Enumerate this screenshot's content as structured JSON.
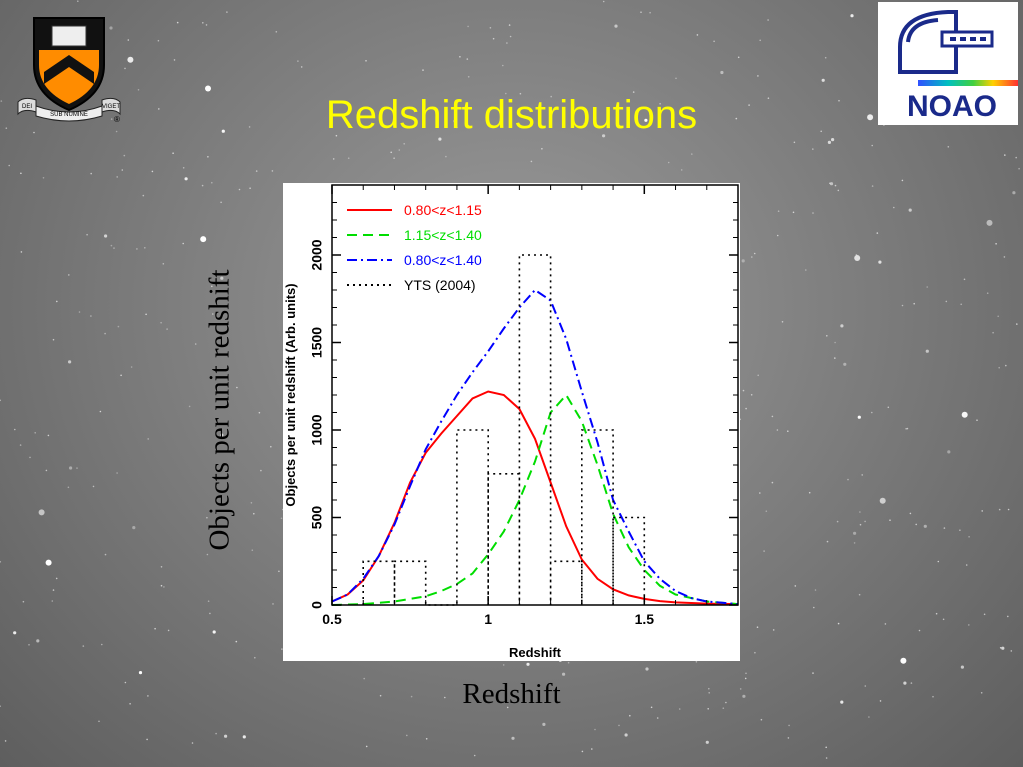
{
  "slide": {
    "title": "Redshift distributions",
    "outer_ylabel": "Objects per unit redshift",
    "outer_xlabel": "Redshift",
    "title_color": "#ffff00"
  },
  "logos": {
    "left": {
      "name": "princeton-shield",
      "motto_left": "DEI",
      "motto_mid": "SUB NUMINE",
      "motto_right": "VIGET",
      "mark": "®"
    },
    "right": {
      "name": "noao-logo",
      "text": "NOAO"
    }
  },
  "chart_data": {
    "type": "line",
    "xlabel": "Redshift",
    "ylabel": "Objects per unit redshift (Arb. units)",
    "xlim": [
      0.5,
      1.8
    ],
    "ylim": [
      0,
      2400
    ],
    "xticks": [
      0.5,
      1,
      1.5
    ],
    "xtick_labels": [
      "0.5",
      "1",
      "1.5"
    ],
    "yticks": [
      0,
      500,
      1000,
      1500,
      2000
    ],
    "ytick_labels": [
      "0",
      "500",
      "1000",
      "1500",
      "2000"
    ],
    "legend_position": "top-left",
    "series": [
      {
        "name": "0.80<z<1.15",
        "color": "#ff0000",
        "style": "solid",
        "x": [
          0.5,
          0.55,
          0.6,
          0.65,
          0.7,
          0.75,
          0.8,
          0.85,
          0.9,
          0.95,
          1.0,
          1.05,
          1.1,
          1.15,
          1.2,
          1.25,
          1.3,
          1.35,
          1.4,
          1.45,
          1.5,
          1.55,
          1.6,
          1.7,
          1.8
        ],
        "y": [
          20,
          60,
          140,
          280,
          470,
          700,
          870,
          980,
          1080,
          1180,
          1220,
          1200,
          1120,
          950,
          700,
          450,
          260,
          150,
          90,
          55,
          35,
          22,
          15,
          8,
          5
        ]
      },
      {
        "name": "1.15<z<1.40",
        "color": "#00dd00",
        "style": "dashed",
        "x": [
          0.5,
          0.6,
          0.7,
          0.8,
          0.85,
          0.9,
          0.95,
          1.0,
          1.05,
          1.1,
          1.15,
          1.2,
          1.25,
          1.3,
          1.35,
          1.4,
          1.45,
          1.5,
          1.55,
          1.6,
          1.7,
          1.8
        ],
        "y": [
          0,
          5,
          20,
          50,
          80,
          120,
          180,
          290,
          420,
          600,
          820,
          1100,
          1200,
          1050,
          800,
          520,
          330,
          200,
          110,
          60,
          20,
          5
        ]
      },
      {
        "name": "0.80<z<1.40",
        "color": "#0000ff",
        "style": "dash-dot",
        "x": [
          0.5,
          0.55,
          0.6,
          0.65,
          0.7,
          0.75,
          0.8,
          0.85,
          0.9,
          0.95,
          1.0,
          1.05,
          1.1,
          1.15,
          1.2,
          1.25,
          1.3,
          1.35,
          1.4,
          1.45,
          1.5,
          1.55,
          1.6,
          1.65,
          1.7,
          1.8
        ],
        "y": [
          20,
          60,
          150,
          280,
          460,
          680,
          890,
          1050,
          1200,
          1330,
          1450,
          1580,
          1700,
          1800,
          1740,
          1520,
          1220,
          930,
          600,
          420,
          250,
          150,
          80,
          40,
          20,
          5
        ]
      },
      {
        "name": "YTS (2004)",
        "color": "#000000",
        "style": "dotted-step",
        "edges": [
          0.6,
          0.7,
          0.8,
          0.9,
          1.0,
          1.1,
          1.2,
          1.3,
          1.4,
          1.5
        ],
        "values": [
          250,
          250,
          0,
          1000,
          750,
          2000,
          250,
          1000,
          500
        ]
      }
    ]
  }
}
